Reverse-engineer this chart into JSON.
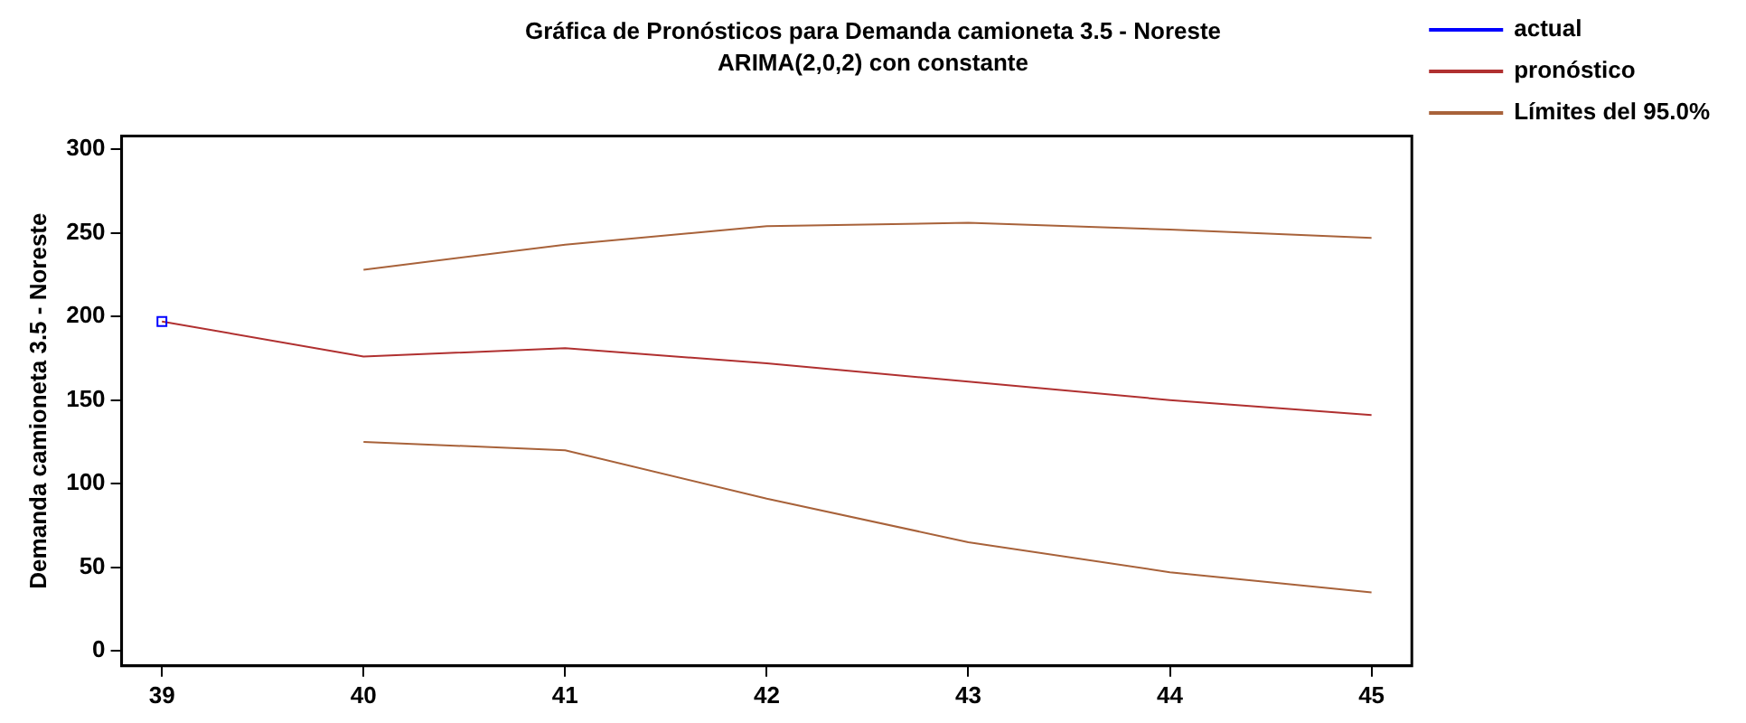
{
  "chart_data": {
    "type": "line",
    "title": "Gráfica de Pronósticos para Demanda camioneta 3.5 - Noreste",
    "subtitle": "ARIMA(2,0,2) con constante",
    "ylabel": "Demanda camioneta 3.5 - Noreste",
    "xlim": [
      38.8,
      45.2
    ],
    "xticks": [
      39,
      40,
      41,
      42,
      43,
      44,
      45
    ],
    "ylim": [
      -9,
      308
    ],
    "yticks": [
      0,
      50,
      100,
      150,
      200,
      250,
      300
    ],
    "grid": false,
    "legend": "right",
    "series": [
      {
        "name": "actual",
        "color": "#0000ff",
        "marker": "square",
        "x": [
          39
        ],
        "values": [
          197
        ]
      },
      {
        "name": "pronóstico",
        "color": "#b03030",
        "marker": "none",
        "x": [
          39,
          40,
          41,
          42,
          43,
          44,
          45
        ],
        "values": [
          197,
          176,
          181,
          172,
          161,
          150,
          141
        ]
      },
      {
        "name": "Límites del 95.0%",
        "color": "#a8623a",
        "marker": "none",
        "x": [
          40,
          41,
          42,
          43,
          44,
          45
        ],
        "values": [
          228,
          243,
          254,
          256,
          252,
          247
        ]
      },
      {
        "color": "#a8623a",
        "marker": "none",
        "x": [
          40,
          41,
          42,
          43,
          44,
          45
        ],
        "values": [
          125,
          120,
          91,
          65,
          47,
          35
        ]
      }
    ]
  }
}
